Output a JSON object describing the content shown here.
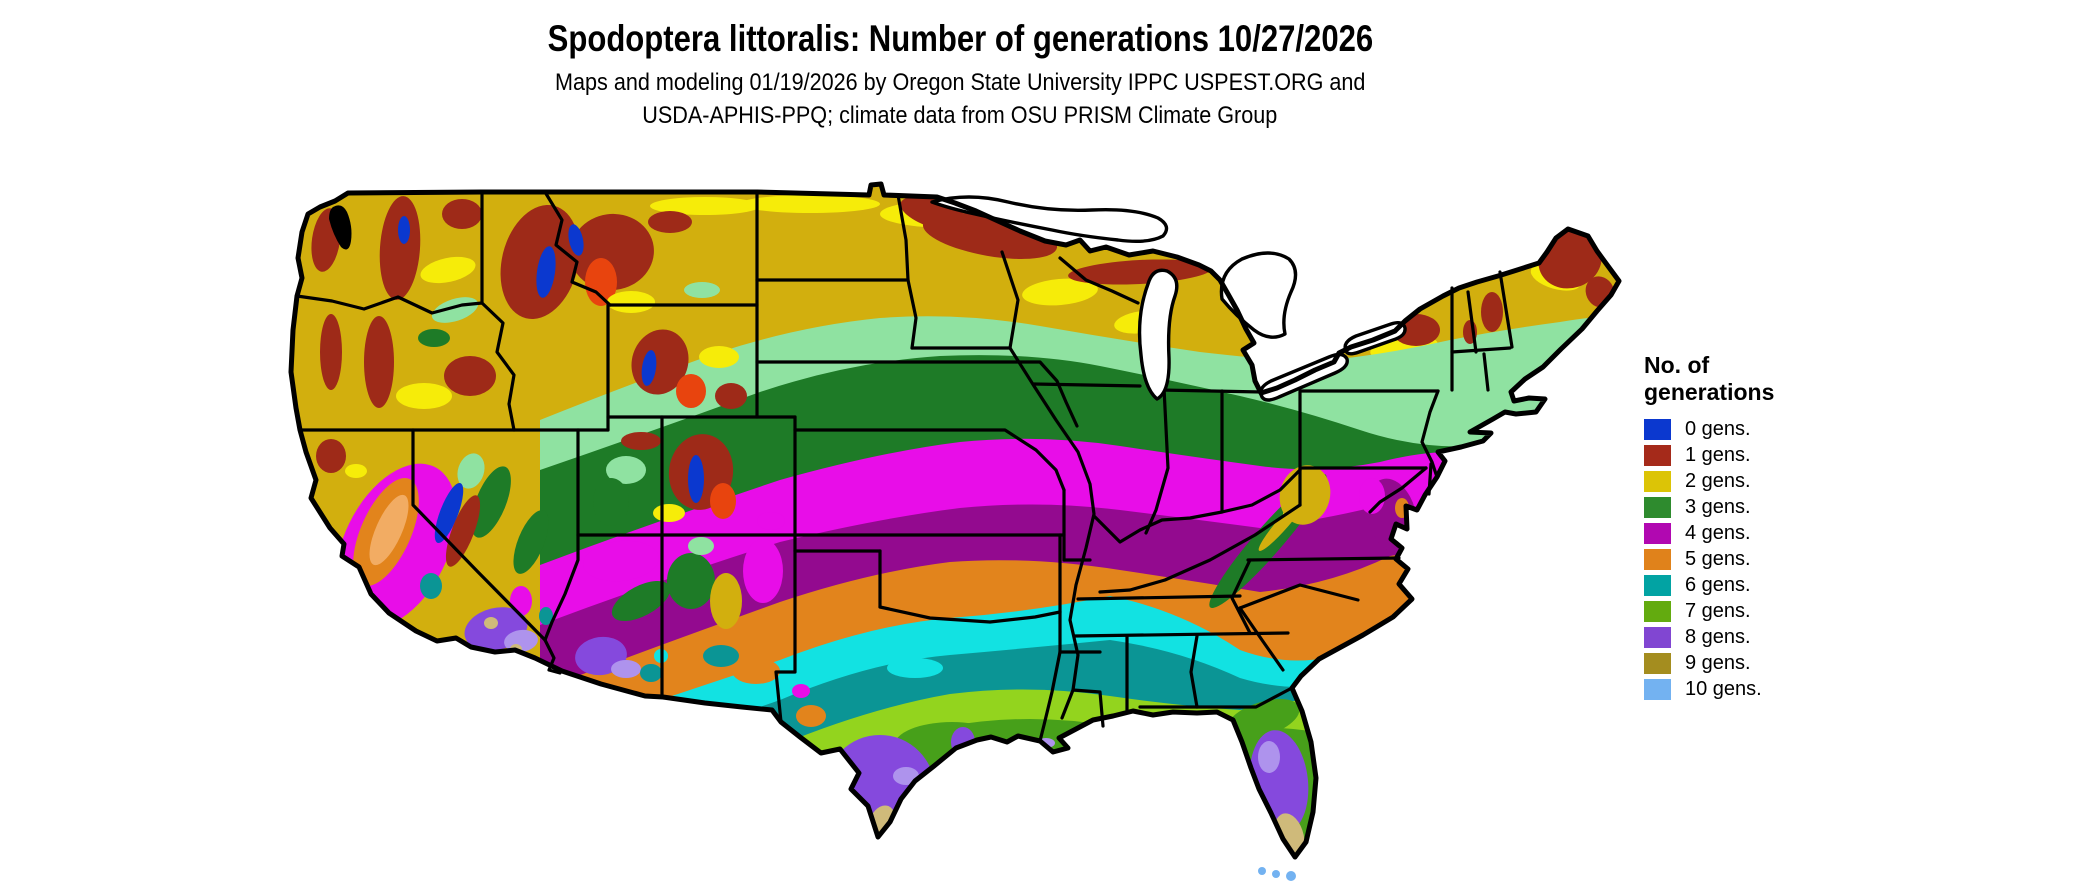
{
  "header": {
    "title": "Spodoptera littoralis: Number of generations 10/27/2026",
    "subtitle_line1": "Maps and modeling 01/19/2026 by Oregon State University IPPC USPEST.ORG and",
    "subtitle_line2": "USDA-APHIS-PPQ; climate data from OSU PRISM Climate Group"
  },
  "legend": {
    "title_line1": "No. of",
    "title_line2": "generations",
    "items": [
      {
        "label": "0 gens.",
        "color": "#0B38CF"
      },
      {
        "label": "1 gens.",
        "color": "#A52A1A"
      },
      {
        "label": "2 gens.",
        "color": "#DCC406"
      },
      {
        "label": "3 gens.",
        "color": "#2E8B2E"
      },
      {
        "label": "4 gens.",
        "color": "#B108B1"
      },
      {
        "label": "5 gens.",
        "color": "#E0821B"
      },
      {
        "label": "6 gens.",
        "color": "#02A3A3"
      },
      {
        "label": "7 gens.",
        "color": "#63AB0F"
      },
      {
        "label": "8 gens.",
        "color": "#8146D2"
      },
      {
        "label": "9 gens.",
        "color": "#A48D1F"
      },
      {
        "label": "10 gens.",
        "color": "#73B2F1"
      }
    ]
  },
  "map": {
    "palette": {
      "gold": "#D2AF0E",
      "byellow": "#F6EC09",
      "dkred": "#9E2A18",
      "ored": "#E8440E",
      "blue": "#0B38CF",
      "mint": "#8FE2A1",
      "dkgreen": "#1E7B27",
      "magenta": "#E80DE8",
      "dkpurple": "#930A8F",
      "orange": "#E2841C",
      "lorange": "#F2AC63",
      "cyan": "#12E2E2",
      "teal": "#0B9595",
      "ygreen": "#93D41E",
      "leaf": "#47A01A",
      "purple8": "#8549DD",
      "lavender": "#AE93ED",
      "tan": "#CFBA7A",
      "olive": "#A48D1F",
      "lblue": "#73B2F1",
      "border": "#000000",
      "water": "#FFFFFF"
    }
  }
}
